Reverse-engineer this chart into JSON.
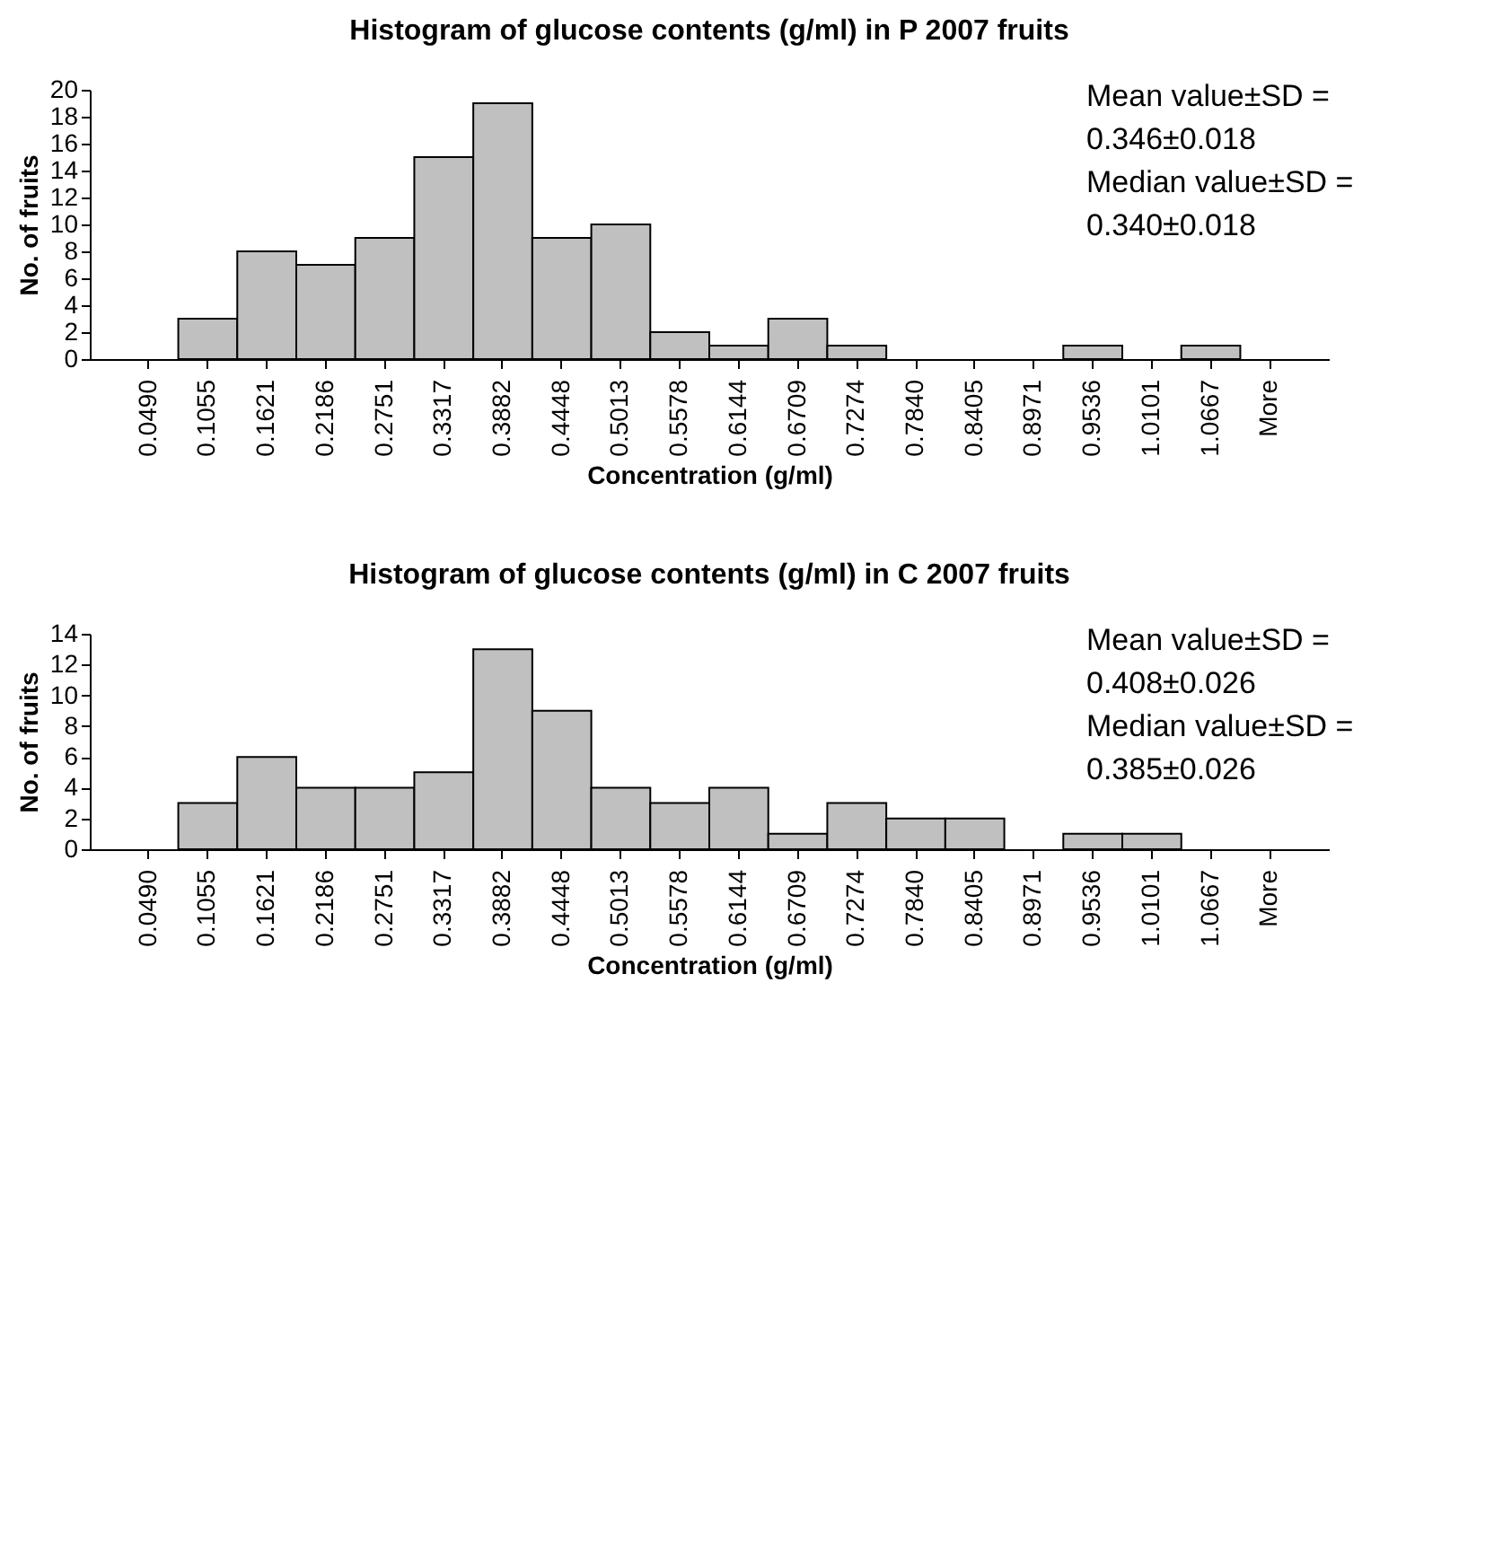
{
  "chart_data": [
    {
      "type": "bar",
      "title": "Histogram of glucose contents (g/ml) in P 2007 fruits",
      "xlabel": "Concentration (g/ml)",
      "ylabel": "No. of fruits",
      "categories": [
        "0.0490",
        "0.1055",
        "0.1621",
        "0.2186",
        "0.2751",
        "0.3317",
        "0.3882",
        "0.4448",
        "0.5013",
        "0.5578",
        "0.6144",
        "0.6709",
        "0.7274",
        "0.7840",
        "0.8405",
        "0.8971",
        "0.9536",
        "1.0101",
        "1.0667",
        "More"
      ],
      "values": [
        0,
        3,
        8,
        7,
        9,
        15,
        19,
        9,
        10,
        2,
        1,
        3,
        1,
        0,
        0,
        0,
        1,
        0,
        1,
        0
      ],
      "color": "#c0c0c0",
      "ylim": [
        0,
        20
      ],
      "yticks": [
        0,
        2,
        4,
        6,
        8,
        10,
        12,
        14,
        16,
        18,
        20
      ],
      "grid": false,
      "annotations": [
        "Mean value±SD =",
        "0.346±0.018",
        "Median value±SD =",
        "0.340±0.018"
      ]
    },
    {
      "type": "bar",
      "title": "Histogram of glucose contents (g/ml) in C 2007 fruits",
      "xlabel": "Concentration (g/ml)",
      "ylabel": "No. of fruits",
      "categories": [
        "0.0490",
        "0.1055",
        "0.1621",
        "0.2186",
        "0.2751",
        "0.3317",
        "0.3882",
        "0.4448",
        "0.5013",
        "0.5578",
        "0.6144",
        "0.6709",
        "0.7274",
        "0.7840",
        "0.8405",
        "0.8971",
        "0.9536",
        "1.0101",
        "1.0667",
        "More"
      ],
      "values": [
        0,
        3,
        6,
        4,
        4,
        5,
        13,
        9,
        4,
        3,
        4,
        1,
        3,
        2,
        2,
        0,
        1,
        1,
        0,
        0
      ],
      "color": "#c0c0c0",
      "ylim": [
        0,
        14
      ],
      "yticks": [
        0,
        2,
        4,
        6,
        8,
        10,
        12,
        14
      ],
      "grid": false,
      "annotations": [
        "Mean value±SD =",
        "0.408±0.026",
        "Median value±SD =",
        "0.385±0.026"
      ]
    }
  ]
}
